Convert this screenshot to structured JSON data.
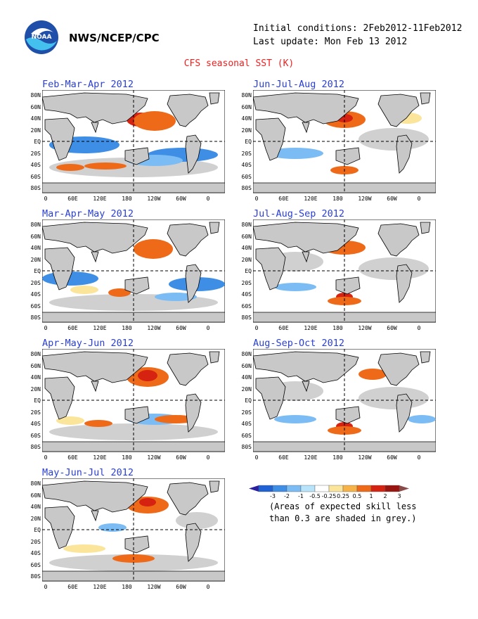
{
  "header": {
    "org": "NWS/NCEP/CPC",
    "initial_conditions": "Initial conditions: 2Feb2012-11Feb2012",
    "last_update": "Last update: Mon Feb 13 2012",
    "title": "CFS seasonal SST (K)",
    "logo_text": "NOAA"
  },
  "panels": [
    {
      "title": "Feb-Mar-Apr 2012"
    },
    {
      "title": "Mar-Apr-May 2012"
    },
    {
      "title": "Apr-May-Jun 2012"
    },
    {
      "title": "May-Jun-Jul 2012"
    },
    {
      "title": "Jun-Jul-Aug 2012"
    },
    {
      "title": "Jul-Aug-Sep 2012"
    },
    {
      "title": "Aug-Sep-Oct 2012"
    }
  ],
  "axes": {
    "lat_labels": [
      "80N",
      "60N",
      "40N",
      "20N",
      "EQ",
      "20S",
      "40S",
      "60S",
      "80S"
    ],
    "lon_labels": [
      "0",
      "60E",
      "120E",
      "180",
      "120W",
      "60W",
      "0"
    ]
  },
  "legend": {
    "ticks": [
      "-3",
      "-2",
      "-1",
      "-0.5",
      "-0.25",
      "0.25",
      "0.5",
      "1",
      "2",
      "3"
    ],
    "colors": [
      "#2a1fa0",
      "#1f62d6",
      "#3f8ee6",
      "#7cbcf4",
      "#b7e3fb",
      "#ffffff",
      "#fbe59a",
      "#f7b347",
      "#ef6a18",
      "#d62210",
      "#9a1410",
      "#8a4a48"
    ],
    "note_line1": "(Areas of expected skill less",
    "note_line2": "than 0.3 are shaded in grey.)"
  },
  "map_colors": {
    "land": "#c8c8c8",
    "skill_grey": "#d0d0d0",
    "warm": "#ef6a18",
    "hot": "#d62210",
    "mild": "#fbe59a",
    "light_orange": "#f7b347",
    "cool": "#7cbcf4",
    "cold": "#3f8ee6",
    "pale_blue": "#b7e3fb"
  }
}
